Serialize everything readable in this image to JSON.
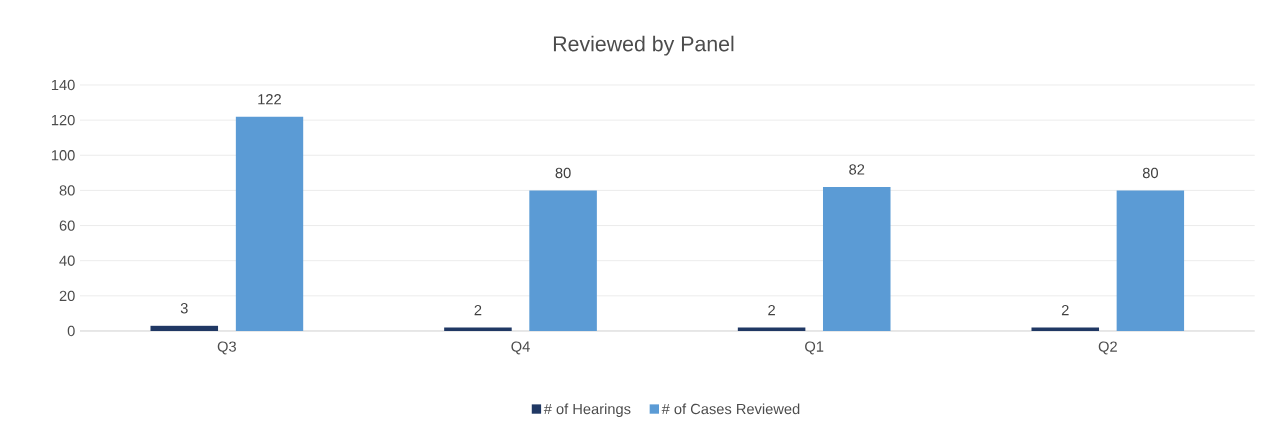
{
  "chart_data": {
    "type": "bar",
    "title": "Reviewed by Panel",
    "categories": [
      "Q3",
      "Q4",
      "Q1",
      "Q2"
    ],
    "series": [
      {
        "name": "# of Hearings",
        "color": "#203864",
        "values": [
          3,
          2,
          2,
          2
        ]
      },
      {
        "name": "# of Cases Reviewed",
        "color": "#5b9bd5",
        "values": [
          122,
          80,
          82,
          80
        ]
      }
    ],
    "ylim": [
      0,
      140
    ],
    "yticks": [
      0,
      20,
      40,
      60,
      80,
      100,
      120,
      140
    ],
    "grid": "y",
    "legend": "bottom",
    "data_labels": true
  }
}
